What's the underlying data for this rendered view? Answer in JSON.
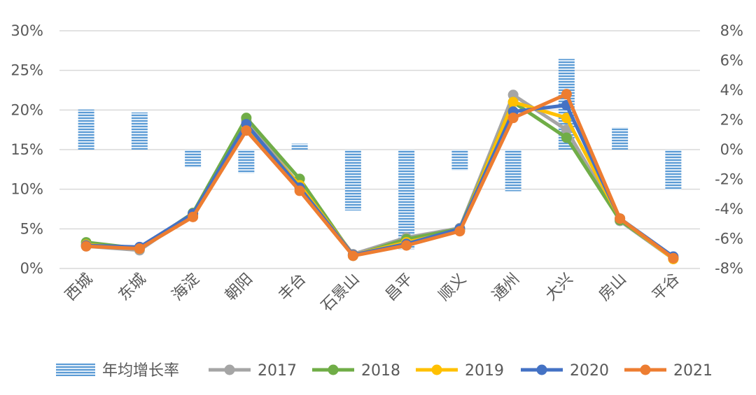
{
  "chart_data": {
    "type": "bar+line",
    "categories": [
      "西城",
      "东城",
      "海淀",
      "朝阳",
      "丰台",
      "石景山",
      "昌平",
      "顺义",
      "通州",
      "大兴",
      "房山",
      "平谷"
    ],
    "left_axis": {
      "ticks": [
        "0%",
        "5%",
        "10%",
        "15%",
        "20%",
        "25%",
        "30%"
      ],
      "ylim": [
        0,
        30
      ]
    },
    "right_axis": {
      "ticks": [
        "-8%",
        "-6%",
        "-4%",
        "-2%",
        "0%",
        "2%",
        "4%",
        "6%",
        "8%"
      ],
      "ylim": [
        -8,
        8
      ]
    },
    "bar_series": {
      "name": "年均增长率",
      "axis": "right",
      "color": "#5B9BD5",
      "values": [
        2.7,
        2.5,
        -1.2,
        -1.6,
        0.4,
        -4.1,
        -6.7,
        -1.4,
        -2.8,
        6.1,
        1.5,
        -2.7
      ]
    },
    "line_series": [
      {
        "name": "2017",
        "color": "#A5A5A5",
        "values": [
          2.8,
          2.3,
          6.9,
          18.6,
          10.5,
          1.8,
          3.9,
          5.1,
          21.9,
          17.5,
          6.0,
          1.2
        ]
      },
      {
        "name": "2018",
        "color": "#70AD47",
        "values": [
          3.3,
          2.5,
          7.0,
          19.0,
          11.3,
          1.6,
          3.7,
          5.0,
          21.0,
          16.5,
          6.1,
          1.3
        ]
      },
      {
        "name": "2019",
        "color": "#FFC000",
        "values": [
          3.0,
          2.5,
          6.7,
          18.0,
          10.5,
          1.7,
          3.3,
          4.8,
          21.0,
          19.0,
          6.3,
          1.2
        ]
      },
      {
        "name": "2020",
        "color": "#4472C4",
        "values": [
          2.9,
          2.7,
          6.9,
          18.2,
          10.2,
          1.7,
          3.1,
          5.0,
          19.8,
          20.6,
          6.3,
          1.5
        ]
      },
      {
        "name": "2021",
        "color": "#ED7D31",
        "values": [
          2.8,
          2.5,
          6.5,
          17.4,
          9.8,
          1.6,
          2.9,
          4.7,
          19.0,
          22.0,
          6.3,
          1.3
        ]
      }
    ],
    "grid": true,
    "legend_position": "bottom"
  }
}
